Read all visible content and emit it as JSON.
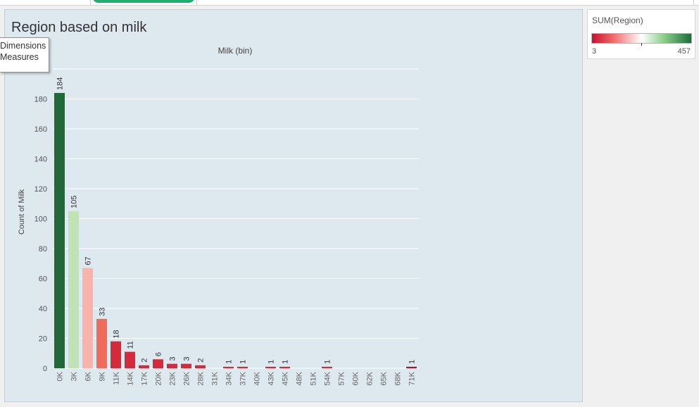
{
  "tooltip": {
    "line1": "Dimensions",
    "line2": "Measures"
  },
  "legend": {
    "title": "SUM(Region)",
    "min": "3",
    "max": "457"
  },
  "colors": {
    "dark_green": "#22693a",
    "light_green": "#bfe3b4",
    "light_red": "#f8b4aa",
    "mid_red": "#ef6b5c",
    "red": "#d42b3c",
    "dark_red": "#b80c2c",
    "background": "#dde8ef",
    "accent_tab": "#1fb071"
  },
  "chart_data": {
    "type": "bar",
    "title": "Region based on milk",
    "xlabel": "Milk (bin)",
    "ylabel": "Count of Milk",
    "ylim": [
      0,
      200
    ],
    "yticks": [
      0,
      20,
      40,
      60,
      80,
      100,
      120,
      140,
      160,
      180
    ],
    "grid": true,
    "categories": [
      "0K",
      "3K",
      "6K",
      "9K",
      "11K",
      "14K",
      "17K",
      "20K",
      "23K",
      "26K",
      "28K",
      "31K",
      "34K",
      "37K",
      "40K",
      "43K",
      "45K",
      "48K",
      "51K",
      "54K",
      "57K",
      "60K",
      "62K",
      "65K",
      "68K",
      "71K"
    ],
    "values": [
      184,
      105,
      67,
      33,
      18,
      11,
      2,
      6,
      3,
      3,
      2,
      null,
      1,
      1,
      null,
      1,
      1,
      null,
      null,
      1,
      null,
      null,
      null,
      null,
      null,
      1
    ],
    "color_keys": [
      "dark_green",
      "light_green",
      "light_red",
      "mid_red",
      "red",
      "red",
      "red",
      "red",
      "red",
      "red",
      "red",
      null,
      "red",
      "red",
      null,
      "red",
      "red",
      null,
      null,
      "red",
      null,
      null,
      null,
      null,
      null,
      "dark_red"
    ]
  }
}
